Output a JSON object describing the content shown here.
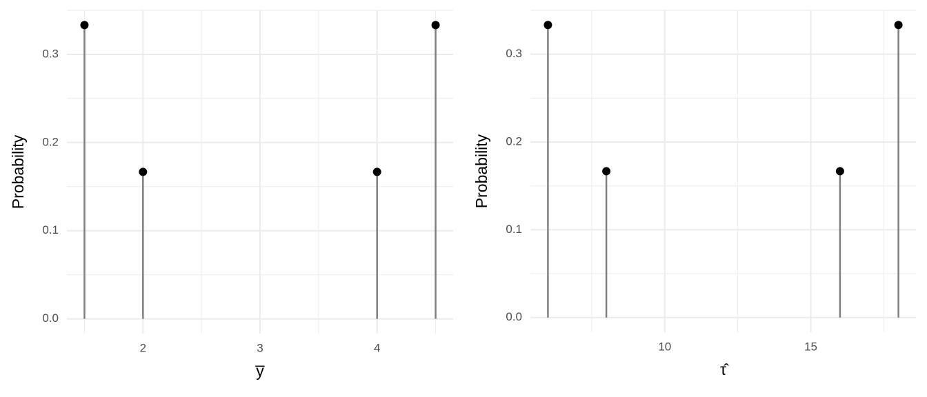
{
  "chart_data": [
    {
      "type": "lollipop",
      "x_label": "y̅",
      "y_label": "Probability",
      "x": [
        1.5,
        2,
        4,
        4.5
      ],
      "values": [
        0.3333,
        0.1667,
        0.1667,
        0.3333
      ],
      "color": "#000000",
      "stem_color": "#7f7f7f",
      "xlim": [
        1.35,
        4.65
      ],
      "xticks": [
        2,
        3,
        4
      ],
      "ylim": [
        -0.0167,
        0.35
      ],
      "yticks": [
        {
          "value": 0,
          "label": "0.0"
        },
        {
          "value": 0.1,
          "label": "0.1"
        },
        {
          "value": 0.2,
          "label": "0.2"
        },
        {
          "value": 0.3,
          "label": "0.3"
        }
      ],
      "grid": true
    },
    {
      "type": "lollipop",
      "x_label": "τ̂",
      "y_label": "Probability",
      "x": [
        6,
        8,
        16,
        18
      ],
      "values": [
        0.3333,
        0.1667,
        0.1667,
        0.3333
      ],
      "color": "#000000",
      "stem_color": "#7f7f7f",
      "xlim": [
        5.4,
        18.6
      ],
      "xticks": [
        10,
        15
      ],
      "ylim": [
        -0.0167,
        0.35
      ],
      "yticks": [
        {
          "value": 0,
          "label": "0.0"
        },
        {
          "value": 0.1,
          "label": "0.1"
        },
        {
          "value": 0.2,
          "label": "0.2"
        },
        {
          "value": 0.3,
          "label": "0.3"
        }
      ],
      "grid": true
    }
  ]
}
